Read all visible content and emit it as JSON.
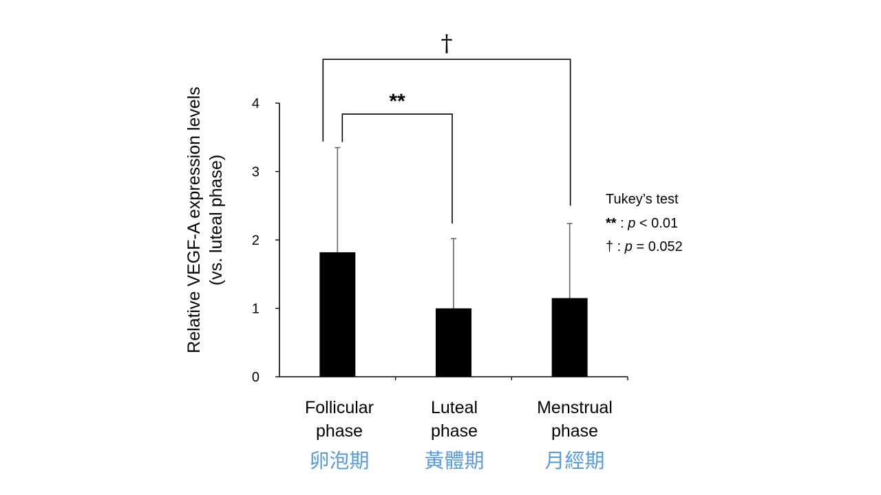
{
  "chart_data": {
    "type": "bar",
    "ylabel": [
      "Relative VEGF-A expression levels",
      "(vs. luteal phase)"
    ],
    "xlabel": "",
    "ylim": [
      0,
      4
    ],
    "yticks": [
      0,
      1,
      2,
      3,
      4
    ],
    "categories": [
      {
        "label": [
          "Follicular",
          "phase"
        ],
        "sublabel": "卵泡期"
      },
      {
        "label": [
          "Luteal",
          "phase"
        ],
        "sublabel": "黃體期"
      },
      {
        "label": [
          "Menstrual",
          "phase"
        ],
        "sublabel": "月經期"
      }
    ],
    "values": [
      1.82,
      1.0,
      1.15
    ],
    "error_upper": [
      1.53,
      1.02,
      1.09
    ],
    "bar_color": "#000000",
    "sublabel_color": "#5b9bd5",
    "significance": [
      {
        "from": 0,
        "to": 1,
        "label": "**",
        "left_start": 3.43,
        "right_start": 2.24,
        "level": 3.84
      },
      {
        "from": 0,
        "to": 2,
        "label": "†",
        "left_start": 3.44,
        "right_start": 2.5,
        "level": 4.64
      }
    ],
    "legend": {
      "title": "Tukey’s test",
      "items": [
        {
          "symbol": "**",
          "sep": " : ",
          "p": "p",
          "rest": " < 0.01"
        },
        {
          "symbol": "†",
          "sep": " : ",
          "p": "p",
          "rest": " = 0.052"
        }
      ]
    }
  }
}
